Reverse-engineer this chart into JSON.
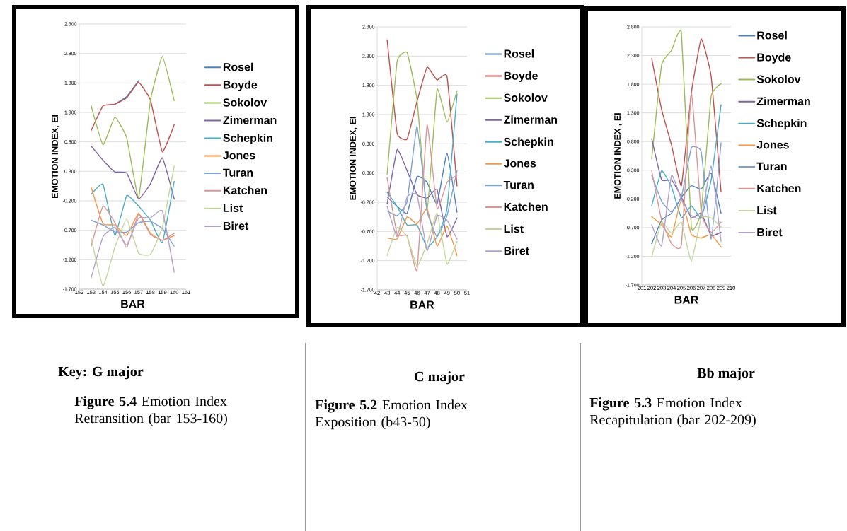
{
  "chart_data": [
    {
      "type": "line",
      "xlabel": "BAR",
      "ylabel": "EMOTION INDEX, EI",
      "x": [
        153,
        154,
        155,
        156,
        157,
        158,
        159,
        160
      ],
      "xlim": [
        152,
        161
      ],
      "xticks": [
        152,
        153,
        154,
        155,
        156,
        157,
        158,
        159,
        160,
        161
      ],
      "ylim": [
        -1.7,
        2.8
      ],
      "yticks": [
        {
          "value": -1.7,
          "label": "-1.700"
        },
        {
          "value": -1.2,
          "label": "-1.200"
        },
        {
          "value": -0.7,
          "label": "-0.700"
        },
        {
          "value": -0.2,
          "label": "-0.200"
        },
        {
          "value": 0.3,
          "label": "0.300"
        },
        {
          "value": 0.8,
          "label": "0.800"
        },
        {
          "value": 1.3,
          "label": "1.300"
        },
        {
          "value": 1.8,
          "label": "1.800"
        },
        {
          "value": 2.3,
          "label": "2.300"
        },
        {
          "value": 2.8,
          "label": "2.800"
        }
      ],
      "grid": "y",
      "legend": "right",
      "marker": "none",
      "line_style": "solid",
      "annotations": [
        "Key: G major",
        "**Figure 5.4** Emotion Index Retransition (bar 153-160)"
      ],
      "series": [
        {
          "name": "Rosel",
          "color": "#4f81bd",
          "values": [
            null,
            null,
            1.44,
            1.57,
            1.84,
            null,
            null,
            null
          ]
        },
        {
          "name": "Boyde",
          "color": "#c0504d",
          "values": [
            0.99,
            1.41,
            1.44,
            1.55,
            1.81,
            1.51,
            0.63,
            1.09
          ]
        },
        {
          "name": "Sokolov",
          "color": "#9bbb59",
          "values": [
            1.41,
            0.75,
            1.22,
            0.87,
            -0.15,
            1.51,
            2.25,
            1.5
          ]
        },
        {
          "name": "Zimerman",
          "color": "#8064a2",
          "values": [
            0.73,
            0.49,
            0.29,
            0.27,
            -0.17,
            0.09,
            0.53,
            -0.17
          ]
        },
        {
          "name": "Schepkin",
          "color": "#4bacc6",
          "values": [
            -0.09,
            0.08,
            -0.79,
            -0.11,
            -0.29,
            -0.53,
            -0.91,
            0.13
          ]
        },
        {
          "name": "Jones",
          "color": "#f79646",
          "values": [
            0.03,
            -0.59,
            -0.61,
            -0.79,
            -0.41,
            -0.75,
            -0.87,
            -0.79
          ]
        },
        {
          "name": "Turan",
          "color": "#7ea2d4",
          "values": [
            -0.53,
            -0.61,
            -0.73,
            -0.73,
            -0.57,
            -0.55,
            -0.67,
            -0.97
          ]
        },
        {
          "name": "Katchen",
          "color": "#d99694",
          "values": [
            -0.97,
            -0.29,
            -0.57,
            -0.99,
            -0.43,
            -0.77,
            -0.87,
            -0.75
          ]
        },
        {
          "name": "List",
          "color": "#c3d69b",
          "values": [
            -0.83,
            -1.65,
            -0.99,
            -0.51,
            -1.09,
            -1.11,
            -0.65,
            0.39
          ]
        },
        {
          "name": "Biret",
          "color": "#b3a2c7",
          "values": [
            -1.51,
            -0.81,
            -0.65,
            -0.95,
            -0.49,
            -0.49,
            -0.37,
            -1.41
          ]
        }
      ]
    },
    {
      "type": "line",
      "xlabel": "BAR",
      "ylabel": "EMOTION INDEX, EI",
      "x": [
        43,
        44,
        45,
        46,
        47,
        48,
        49,
        50
      ],
      "xlim": [
        42,
        51
      ],
      "xticks": [
        42,
        43,
        44,
        45,
        46,
        47,
        48,
        49,
        50,
        51
      ],
      "ylim": [
        -1.7,
        2.8
      ],
      "yticks": [
        {
          "value": -1.7,
          "label": "-1.700"
        },
        {
          "value": -1.2,
          "label": "-1.200"
        },
        {
          "value": -0.7,
          "label": "-0.700"
        },
        {
          "value": -0.2,
          "label": "-0.200"
        },
        {
          "value": 0.3,
          "label": "0.300"
        },
        {
          "value": 0.8,
          "label": "0.800"
        },
        {
          "value": 1.3,
          "label": "1.300"
        },
        {
          "value": 1.8,
          "label": "1.800"
        },
        {
          "value": 2.3,
          "label": "2.300"
        },
        {
          "value": 2.8,
          "label": "2.800"
        }
      ],
      "grid": "y",
      "legend": "right",
      "marker": "none",
      "line_style": "solid",
      "annotations": [
        "C major",
        "**Figure 5.2** Emotion Index Exposition (b43-50)"
      ],
      "series": [
        {
          "name": "Rosel",
          "color": "#4f81bd",
          "values": [
            -0.11,
            -0.27,
            -0.39,
            0.24,
            0.14,
            -0.23,
            0.64,
            -0.37
          ]
        },
        {
          "name": "Boyde",
          "color": "#c0504d",
          "values": [
            2.58,
            0.98,
            0.88,
            1.53,
            2.11,
            1.89,
            1.95,
            0.08
          ]
        },
        {
          "name": "Sokolov",
          "color": "#9bbb59",
          "values": [
            0.28,
            2.21,
            2.36,
            1.55,
            -0.35,
            1.73,
            1.17,
            1.71
          ]
        },
        {
          "name": "Zimerman",
          "color": "#8064a2",
          "values": [
            -0.23,
            0.7,
            0.34,
            -0.07,
            -0.13,
            0.02,
            -0.79,
            -0.47
          ]
        },
        {
          "name": "Schepkin",
          "color": "#4bacc6",
          "values": [
            -0.03,
            -0.27,
            -0.59,
            -0.59,
            -0.97,
            -0.79,
            -0.31,
            1.65
          ]
        },
        {
          "name": "Jones",
          "color": "#f79646",
          "values": [
            -0.81,
            -0.83,
            -0.45,
            -0.57,
            -0.31,
            -0.95,
            -0.61,
            -1.11
          ]
        },
        {
          "name": "Turan",
          "color": "#7ea2d4",
          "values": [
            -0.35,
            -0.43,
            -0.19,
            1.1,
            -0.35,
            -0.79,
            -0.43,
            0.34
          ]
        },
        {
          "name": "Katchen",
          "color": "#d99694",
          "values": [
            0.22,
            -0.75,
            -0.77,
            -1.36,
            1.12,
            -0.31,
            0.14,
            0.26
          ]
        },
        {
          "name": "List",
          "color": "#c3d69b",
          "values": [
            -1.11,
            -0.63,
            -0.79,
            -1.3,
            -0.91,
            -0.39,
            -1.26,
            -0.87
          ]
        },
        {
          "name": "Biret",
          "color": "#b3a2c7",
          "values": [
            -0.27,
            -0.79,
            -0.11,
            -0.07,
            -1.03,
            -0.43,
            -0.51,
            -0.83
          ]
        }
      ]
    },
    {
      "type": "line",
      "xlabel": "BAR",
      "ylabel": "EMOTION INDEX , EI",
      "x": [
        202,
        203,
        204,
        205,
        206,
        207,
        208,
        209
      ],
      "xlim": [
        201,
        210
      ],
      "xticks": [
        201,
        202,
        203,
        204,
        205,
        206,
        207,
        208,
        209,
        210
      ],
      "ylim": [
        -1.7,
        2.8
      ],
      "yticks": [
        {
          "value": -1.7,
          "label": "-1.700"
        },
        {
          "value": -1.2,
          "label": "-1.200"
        },
        {
          "value": -0.7,
          "label": "-0.700"
        },
        {
          "value": -0.2,
          "label": "-0.200"
        },
        {
          "value": 0.3,
          "label": "0.300"
        },
        {
          "value": 0.8,
          "label": "0.800"
        },
        {
          "value": 1.3,
          "label": "1.300"
        },
        {
          "value": 1.8,
          "label": "1.800"
        },
        {
          "value": 2.3,
          "label": "2.300"
        },
        {
          "value": 2.8,
          "label": "2.800"
        }
      ],
      "grid": "y",
      "legend": "right",
      "marker": "none",
      "line_style": "solid",
      "annotations": [
        "Bb major",
        "**Figure 5.3** Emotion Index Recapitulation (bar 202-209)"
      ],
      "series": [
        {
          "name": "Rosel",
          "color": "#4f81bd",
          "values": [
            -0.98,
            -0.57,
            -0.45,
            -0.17,
            0.03,
            -0.03,
            0.25,
            -0.45
          ]
        },
        {
          "name": "Boyde",
          "color": "#c0504d",
          "values": [
            2.25,
            1.36,
            0.74,
            0.03,
            1.65,
            2.59,
            1.94,
            -0.08
          ]
        },
        {
          "name": "Sokolov",
          "color": "#9bbb59",
          "values": [
            0.5,
            2.14,
            2.39,
            2.7,
            -0.69,
            -0.41,
            1.59,
            1.81
          ]
        },
        {
          "name": "Zimerman",
          "color": "#8064a2",
          "values": [
            0.85,
            0.13,
            0.13,
            -0.17,
            -0.53,
            -0.45,
            -0.84,
            -0.78
          ]
        },
        {
          "name": "Schepkin",
          "color": "#4bacc6",
          "values": [
            -0.32,
            0.29,
            0.01,
            -0.53,
            -0.32,
            -0.53,
            0.13,
            1.44
          ]
        },
        {
          "name": "Jones",
          "color": "#f79646",
          "values": [
            -0.51,
            -0.65,
            -0.86,
            -0.21,
            -0.82,
            -0.88,
            -0.82,
            -1.04
          ]
        },
        {
          "name": "Turan",
          "color": "#7ea2d4",
          "values": [
            0.21,
            -0.24,
            -0.43,
            -0.17,
            0.69,
            0.62,
            -0.9,
            0.78
          ]
        },
        {
          "name": "Katchen",
          "color": "#d99694",
          "values": [
            0.29,
            -0.57,
            -0.98,
            -1.0,
            1.65,
            -0.45,
            -0.78,
            -0.61
          ]
        },
        {
          "name": "List",
          "color": "#c3d69b",
          "values": [
            -1.21,
            -0.61,
            -0.8,
            -0.61,
            -1.29,
            -0.53,
            -0.53,
            -0.69
          ]
        },
        {
          "name": "Biret",
          "color": "#b3a2c7",
          "values": [
            -0.65,
            -1.02,
            0.21,
            -0.21,
            -0.49,
            -0.53,
            0.37,
            -0.94
          ]
        }
      ]
    }
  ]
}
